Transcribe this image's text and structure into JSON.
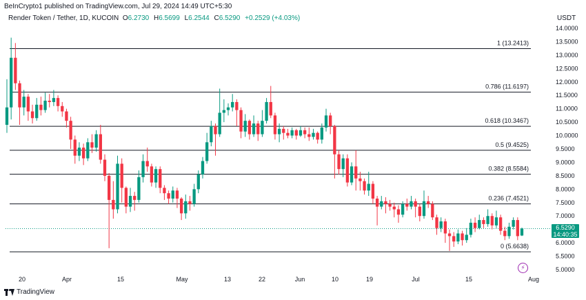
{
  "header": {
    "published": "BeInCrypto1 published on TradingView.com, Jul 29, 2024 14:49 UTC+5:30",
    "symbol": "Render Token / Tether, 1D, KUCOIN",
    "ohlc": {
      "o_label": "O",
      "o": "6.2730",
      "h_label": "H",
      "h": "6.5699",
      "l_label": "L",
      "l": "6.2544",
      "c_label": "C",
      "c": "6.5290",
      "change": "+0.2529 (+4.03%)"
    },
    "currency": "USDT"
  },
  "price_tag": {
    "price": "6.5290",
    "countdown": "14:40:35"
  },
  "footer": {
    "brand": "TradingView"
  },
  "colors": {
    "up": "#089981",
    "down": "#f23645",
    "fib_line": "#131722",
    "grid": "#ffffff",
    "accent": "#9c27b0"
  },
  "icons": {
    "logo": "tradingview-logo-icon",
    "event": "flash-icon"
  },
  "chart_data": {
    "type": "candlestick",
    "ylim": [
      5.0,
      14.0
    ],
    "y_ticks": [
      "14.0000",
      "13.5000",
      "13.0000",
      "12.5000",
      "12.0000",
      "11.5000",
      "11.0000",
      "10.5000",
      "10.0000",
      "9.5000",
      "9.0000",
      "8.5000",
      "8.0000",
      "7.5000",
      "7.0000",
      "6.5000",
      "6.0000",
      "5.5000",
      "5.0000"
    ],
    "x_ticks": [
      "20",
      "Apr",
      "15",
      "May",
      "13",
      "22",
      "Jun",
      "10",
      "19",
      "Jul",
      "15",
      "Aug"
    ],
    "fib_levels": [
      {
        "label": "1 (13.2413)",
        "value": 13.2413
      },
      {
        "label": "0.786 (11.6197)",
        "value": 11.6197
      },
      {
        "label": "0.618 (10.3467)",
        "value": 10.3467
      },
      {
        "label": "0.5 (9.4525)",
        "value": 9.4525
      },
      {
        "label": "0.382 (8.5584)",
        "value": 8.5584
      },
      {
        "label": "0.236 (7.4521)",
        "value": 7.4521
      },
      {
        "label": "0 (5.6638)",
        "value": 5.6638
      }
    ],
    "last_price": 6.529,
    "candles": [
      [
        10.4,
        11.05,
        12.1,
        10.1
      ],
      [
        11.05,
        12.9,
        13.65,
        10.6
      ],
      [
        12.9,
        11.95,
        13.45,
        11.7
      ],
      [
        11.95,
        11.05,
        12.05,
        10.4
      ],
      [
        11.05,
        11.45,
        11.7,
        10.75
      ],
      [
        11.45,
        10.9,
        11.55,
        10.55
      ],
      [
        10.9,
        10.65,
        11.15,
        10.45
      ],
      [
        10.65,
        11.15,
        11.4,
        10.55
      ],
      [
        11.15,
        10.95,
        11.45,
        10.75
      ],
      [
        10.95,
        11.3,
        11.6,
        10.85
      ],
      [
        11.3,
        11.25,
        11.55,
        11.05
      ],
      [
        11.25,
        11.4,
        11.7,
        11.1
      ],
      [
        11.4,
        11.1,
        11.5,
        10.9
      ],
      [
        11.1,
        10.9,
        11.25,
        10.7
      ],
      [
        10.9,
        10.55,
        11.0,
        10.3
      ],
      [
        10.55,
        9.85,
        10.7,
        9.5
      ],
      [
        9.85,
        9.25,
        10.0,
        8.95
      ],
      [
        9.25,
        9.55,
        9.75,
        9.05
      ],
      [
        9.55,
        9.15,
        9.7,
        8.9
      ],
      [
        9.15,
        9.75,
        9.9,
        9.05
      ],
      [
        9.75,
        9.55,
        10.05,
        9.35
      ],
      [
        9.55,
        10.05,
        10.2,
        9.4
      ],
      [
        10.05,
        9.1,
        10.4,
        8.95
      ],
      [
        9.1,
        8.5,
        9.3,
        8.3
      ],
      [
        8.5,
        7.6,
        8.6,
        5.8
      ],
      [
        7.6,
        7.25,
        8.3,
        6.9
      ],
      [
        7.25,
        8.95,
        9.25,
        7.1
      ],
      [
        8.95,
        8.05,
        9.15,
        7.5
      ],
      [
        8.05,
        7.35,
        8.1,
        7.1
      ],
      [
        7.35,
        7.75,
        8.05,
        7.15
      ],
      [
        7.75,
        7.6,
        7.9,
        7.2
      ],
      [
        7.6,
        8.45,
        8.7,
        7.5
      ],
      [
        8.45,
        9.05,
        9.3,
        8.25
      ],
      [
        9.05,
        8.85,
        9.55,
        8.65
      ],
      [
        8.85,
        8.25,
        8.95,
        8.1
      ],
      [
        8.25,
        8.75,
        8.85,
        8.05
      ],
      [
        8.75,
        8.05,
        8.85,
        7.85
      ],
      [
        8.05,
        7.85,
        8.15,
        7.6
      ],
      [
        7.85,
        7.65,
        7.95,
        7.45
      ],
      [
        7.65,
        7.95,
        8.1,
        7.5
      ],
      [
        7.95,
        7.65,
        8.05,
        7.3
      ],
      [
        7.65,
        7.1,
        7.7,
        6.85
      ],
      [
        7.1,
        7.55,
        7.8,
        6.9
      ],
      [
        7.55,
        7.45,
        7.75,
        7.2
      ],
      [
        7.45,
        8.0,
        8.2,
        7.35
      ],
      [
        8.0,
        8.55,
        8.7,
        7.85
      ],
      [
        8.55,
        9.05,
        9.2,
        8.4
      ],
      [
        9.05,
        9.75,
        10.1,
        8.95
      ],
      [
        9.75,
        10.35,
        10.55,
        9.6
      ],
      [
        10.35,
        10.05,
        10.45,
        9.25
      ],
      [
        10.05,
        10.85,
        11.75,
        9.95
      ],
      [
        10.85,
        10.95,
        11.35,
        10.5
      ],
      [
        10.95,
        11.05,
        11.2,
        10.75
      ],
      [
        11.05,
        11.25,
        11.55,
        10.9
      ],
      [
        11.25,
        10.95,
        11.35,
        10.35
      ],
      [
        10.95,
        10.15,
        11.05,
        9.9
      ],
      [
        10.15,
        10.55,
        10.8,
        9.95
      ],
      [
        10.55,
        10.05,
        10.6,
        9.85
      ],
      [
        10.05,
        10.45,
        10.75,
        9.95
      ],
      [
        10.45,
        10.05,
        10.55,
        9.8
      ],
      [
        10.05,
        10.55,
        10.95,
        9.95
      ],
      [
        10.55,
        11.25,
        11.4,
        10.45
      ],
      [
        11.25,
        10.75,
        11.85,
        10.65
      ],
      [
        10.75,
        10.05,
        10.85,
        9.85
      ],
      [
        10.05,
        10.25,
        10.45,
        9.75
      ],
      [
        10.25,
        10.1,
        10.35,
        9.85
      ],
      [
        10.1,
        10.0,
        10.25,
        9.9
      ],
      [
        10.0,
        10.2,
        10.3,
        9.9
      ],
      [
        10.2,
        10.0,
        10.25,
        9.85
      ],
      [
        10.0,
        10.2,
        10.35,
        9.95
      ],
      [
        10.2,
        10.05,
        10.3,
        9.9
      ],
      [
        10.05,
        9.95,
        10.3,
        9.8
      ],
      [
        9.95,
        10.1,
        10.25,
        9.85
      ],
      [
        10.1,
        9.85,
        10.15,
        9.7
      ],
      [
        9.85,
        10.3,
        10.45,
        9.7
      ],
      [
        10.3,
        10.75,
        11.0,
        10.15
      ],
      [
        10.75,
        10.35,
        10.85,
        10.05
      ],
      [
        10.35,
        9.3,
        10.4,
        8.4
      ],
      [
        9.3,
        8.75,
        9.45,
        8.55
      ],
      [
        8.75,
        9.15,
        9.3,
        8.45
      ],
      [
        9.15,
        8.25,
        9.3,
        8.1
      ],
      [
        8.25,
        8.85,
        9.0,
        8.15
      ],
      [
        8.85,
        8.4,
        9.45,
        7.95
      ],
      [
        8.4,
        8.3,
        8.65,
        7.95
      ],
      [
        8.3,
        7.95,
        8.4,
        7.8
      ],
      [
        7.95,
        8.2,
        8.65,
        7.75
      ],
      [
        8.2,
        7.65,
        8.3,
        7.45
      ],
      [
        7.65,
        7.35,
        7.75,
        6.65
      ],
      [
        7.35,
        7.55,
        7.75,
        7.25
      ],
      [
        7.55,
        7.45,
        7.7,
        7.1
      ],
      [
        7.45,
        7.35,
        7.6,
        7.2
      ],
      [
        7.35,
        7.25,
        7.5,
        6.95
      ],
      [
        7.25,
        7.05,
        7.4,
        6.75
      ],
      [
        7.05,
        7.45,
        7.55,
        6.95
      ],
      [
        7.45,
        7.35,
        7.65,
        7.2
      ],
      [
        7.35,
        7.55,
        7.75,
        7.25
      ],
      [
        7.55,
        7.35,
        7.65,
        6.95
      ],
      [
        7.35,
        7.0,
        7.45,
        6.8
      ],
      [
        7.0,
        7.55,
        7.95,
        6.9
      ],
      [
        7.55,
        7.45,
        7.75,
        7.3
      ],
      [
        7.45,
        6.95,
        7.55,
        6.85
      ],
      [
        6.95,
        6.55,
        7.05,
        6.3
      ],
      [
        6.55,
        6.8,
        6.95,
        6.4
      ],
      [
        6.8,
        6.35,
        6.9,
        6.0
      ],
      [
        6.35,
        6.25,
        6.5,
        5.7
      ],
      [
        6.25,
        6.05,
        6.4,
        5.85
      ],
      [
        6.05,
        6.35,
        6.5,
        5.95
      ],
      [
        6.35,
        6.1,
        6.45,
        5.9
      ],
      [
        6.1,
        6.3,
        6.55,
        6.0
      ],
      [
        6.3,
        6.75,
        6.9,
        6.2
      ],
      [
        6.75,
        6.55,
        6.95,
        6.4
      ],
      [
        6.55,
        6.85,
        7.05,
        6.5
      ],
      [
        6.85,
        6.7,
        6.95,
        6.55
      ],
      [
        6.7,
        7.0,
        7.25,
        6.6
      ],
      [
        7.0,
        6.65,
        7.1,
        6.5
      ],
      [
        6.65,
        6.95,
        7.2,
        6.55
      ],
      [
        6.95,
        6.45,
        7.05,
        6.3
      ],
      [
        6.45,
        6.25,
        6.6,
        6.1
      ],
      [
        6.25,
        6.6,
        6.75,
        6.15
      ],
      [
        6.6,
        6.85,
        6.95,
        6.5
      ],
      [
        6.85,
        6.25,
        6.95,
        6.1
      ],
      [
        6.273,
        6.529,
        6.5699,
        6.2544
      ]
    ]
  }
}
